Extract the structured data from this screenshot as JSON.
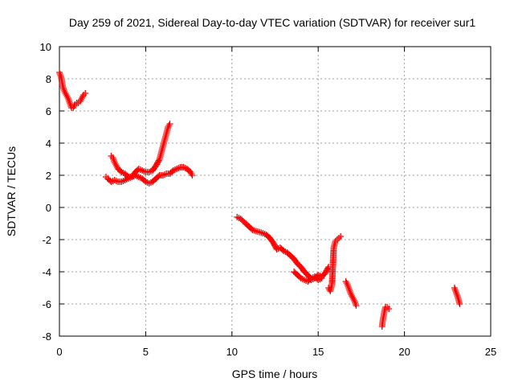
{
  "chart_data": {
    "type": "scatter",
    "title": "Day 259 of 2021, Sidereal Day-to-day VTEC variation (SDTVAR) for receiver sur1",
    "xlabel": "GPS time / hours",
    "ylabel": "SDTVAR / TECUs",
    "xlim": [
      0,
      25
    ],
    "ylim": [
      -8,
      10
    ],
    "x_ticks": [
      0,
      5,
      10,
      15,
      20,
      25
    ],
    "y_ticks": [
      -8,
      -6,
      -4,
      -2,
      0,
      2,
      4,
      6,
      8,
      10
    ],
    "grid": true,
    "marker": "+",
    "color": "#ff0000",
    "series": [
      {
        "name": "sdtvar",
        "segments": [
          {
            "x": [
              0.0,
              0.1,
              0.2,
              0.3,
              0.4,
              0.5,
              0.6,
              0.7,
              0.8,
              0.9,
              1.0,
              1.1,
              1.2,
              1.3,
              1.4,
              1.5
            ],
            "y": [
              8.4,
              8.1,
              7.5,
              7.2,
              7.0,
              6.8,
              6.5,
              6.2,
              6.2,
              6.4,
              6.5,
              6.5,
              6.6,
              6.8,
              7.0,
              7.1
            ]
          },
          {
            "x": [
              2.7,
              2.8,
              3.0,
              3.2,
              3.4,
              3.6,
              3.8,
              4.0,
              4.2,
              4.4,
              4.6,
              4.8,
              5.0,
              5.2,
              5.4,
              5.6,
              5.8,
              6.0,
              6.2,
              6.4,
              6.6,
              6.8,
              7.0,
              7.2,
              7.4,
              7.6,
              7.7
            ],
            "y": [
              1.9,
              1.8,
              1.6,
              1.7,
              1.6,
              1.6,
              1.7,
              1.8,
              1.9,
              2.0,
              1.9,
              1.8,
              1.6,
              1.5,
              1.6,
              1.8,
              2.0,
              2.0,
              2.1,
              2.1,
              2.3,
              2.4,
              2.5,
              2.5,
              2.4,
              2.2,
              2.0
            ]
          },
          {
            "x": [
              3.0,
              3.1,
              3.2,
              3.3,
              3.4,
              3.6,
              3.8,
              4.0,
              4.2,
              4.4,
              4.6,
              4.8,
              5.0,
              5.2,
              5.4,
              5.6,
              5.8,
              5.9,
              6.0,
              6.1,
              6.2,
              6.3,
              6.4
            ],
            "y": [
              3.2,
              3.1,
              2.8,
              2.6,
              2.4,
              2.2,
              2.1,
              1.9,
              1.9,
              2.2,
              2.4,
              2.3,
              2.2,
              2.2,
              2.3,
              2.6,
              3.0,
              3.4,
              3.8,
              4.2,
              4.6,
              5.0,
              5.2
            ]
          },
          {
            "x": [
              10.3,
              10.5,
              10.8,
              11.0,
              11.2,
              11.5,
              11.8,
              12.0,
              12.2,
              12.4,
              12.6,
              12.8,
              13.0,
              13.2,
              13.4,
              13.6,
              13.8,
              14.0,
              14.2,
              14.4,
              14.6,
              14.8,
              15.0,
              15.2,
              15.4,
              15.6
            ],
            "y": [
              -0.6,
              -0.7,
              -1.0,
              -1.2,
              -1.4,
              -1.5,
              -1.6,
              -1.7,
              -1.9,
              -2.2,
              -2.6,
              -2.5,
              -2.7,
              -2.8,
              -3.0,
              -3.2,
              -3.5,
              -3.7,
              -4.0,
              -4.2,
              -4.5,
              -4.4,
              -4.2,
              -4.3,
              -4.1,
              -3.7
            ]
          },
          {
            "x": [
              13.6,
              13.8,
              14.0,
              14.2,
              14.4,
              14.6,
              14.8,
              15.0,
              15.2
            ],
            "y": [
              -4.0,
              -4.2,
              -4.4,
              -4.5,
              -4.6,
              -4.4,
              -4.3,
              -4.5,
              -4.4
            ]
          },
          {
            "x": [
              15.6,
              15.7,
              15.8,
              15.9,
              16.0,
              16.1,
              16.2,
              16.3
            ],
            "y": [
              -5.0,
              -5.2,
              -4.8,
              -2.5,
              -2.1,
              -2.0,
              -1.9,
              -1.8
            ]
          },
          {
            "x": [
              16.6,
              16.7,
              16.8,
              16.9,
              17.0,
              17.1,
              17.2
            ],
            "y": [
              -4.6,
              -4.8,
              -5.1,
              -5.4,
              -5.6,
              -5.8,
              -6.1
            ]
          },
          {
            "x": [
              18.7,
              18.75,
              18.8,
              18.85,
              18.9,
              19.0,
              19.1
            ],
            "y": [
              -7.4,
              -7.0,
              -6.7,
              -6.4,
              -6.2,
              -6.2,
              -6.3
            ]
          },
          {
            "x": [
              22.9,
              23.0,
              23.1,
              23.2
            ],
            "y": [
              -5.0,
              -5.3,
              -5.6,
              -6.0
            ]
          }
        ]
      }
    ]
  }
}
